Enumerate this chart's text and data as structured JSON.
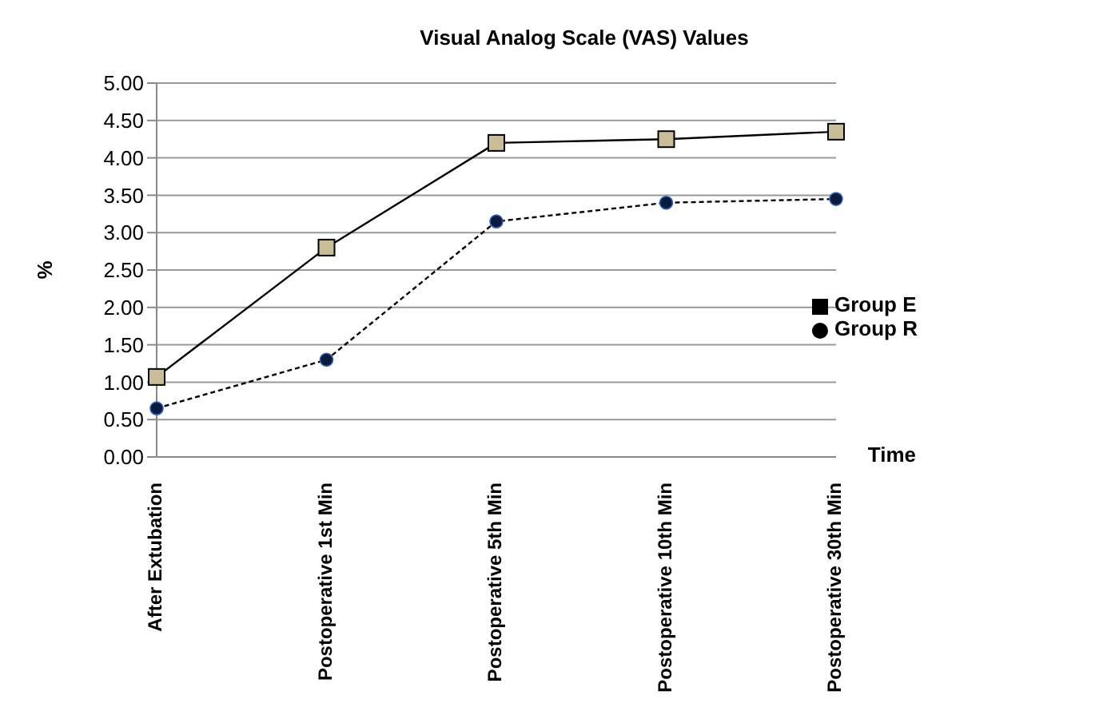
{
  "chart_data": {
    "type": "line",
    "title": "Visual Analog Scale (VAS) Values",
    "xlabel": "Time",
    "ylabel": "%",
    "categories": [
      "After Extubation",
      "Postoperative 1st Min",
      "Postoperative 5th Min",
      "Postoperative 10th Min",
      "Postoperative 30th Min"
    ],
    "series": [
      {
        "name": "Group R",
        "color": "#000000",
        "values": [
          0.65,
          1.3,
          3.15,
          3.4,
          3.45
        ],
        "marker": "circle",
        "line_style": "dashed"
      },
      {
        "name": "Group E",
        "color": "#000000",
        "values": [
          1.07,
          2.8,
          4.2,
          4.25,
          4.35
        ],
        "marker": "square",
        "line_style": "solid"
      }
    ],
    "ylim": [
      0,
      5
    ],
    "yticks": [
      {
        "value": 0,
        "label": "0.00"
      },
      {
        "value": 0.5,
        "label": "0.50"
      },
      {
        "value": 1,
        "label": "1.00"
      },
      {
        "value": 1.5,
        "label": "1.50"
      },
      {
        "value": 2,
        "label": "2.00"
      },
      {
        "value": 2.5,
        "label": "2.50"
      },
      {
        "value": 3,
        "label": "3.00"
      },
      {
        "value": 3.5,
        "label": "3.50"
      },
      {
        "value": 4,
        "label": "4.00"
      },
      {
        "value": 4.5,
        "label": "4.50"
      },
      {
        "value": 5,
        "label": "5.00"
      }
    ],
    "grid": "y",
    "legend": "right"
  }
}
